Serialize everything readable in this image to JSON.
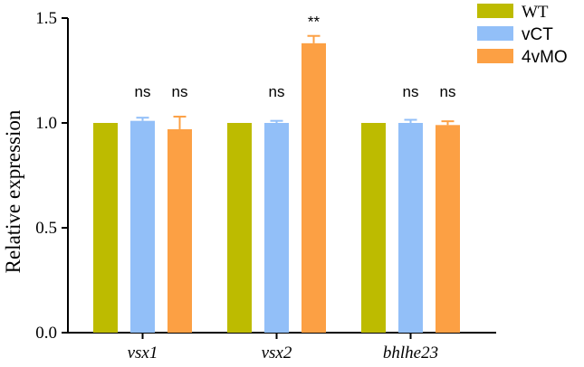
{
  "chart_data": {
    "type": "bar",
    "categories": [
      "vsx1",
      "vsx2",
      "bhlhe23"
    ],
    "ylabel": "Relative expression",
    "xlabel": "",
    "ylim": [
      0,
      1.5
    ],
    "yticks": [
      "0.0",
      "0.5",
      "1.0",
      "1.5"
    ],
    "legend_position": "top-right",
    "series": [
      {
        "name": "WT",
        "color": "#bdbb00",
        "values": [
          1.0,
          1.0,
          1.0
        ],
        "errors": [
          0,
          0,
          0
        ],
        "labels": [
          "",
          "",
          ""
        ]
      },
      {
        "name": "vCT",
        "color": "#92bff8",
        "values": [
          1.01,
          1.0,
          1.0
        ],
        "errors": [
          0.015,
          0.01,
          0.015
        ],
        "labels": [
          "ns",
          "ns",
          "ns"
        ]
      },
      {
        "name": "4vMO",
        "color": "#fca044",
        "values": [
          0.97,
          1.38,
          0.99
        ],
        "errors": [
          0.06,
          0.035,
          0.018
        ],
        "labels": [
          "ns",
          "**",
          "ns"
        ]
      }
    ]
  }
}
